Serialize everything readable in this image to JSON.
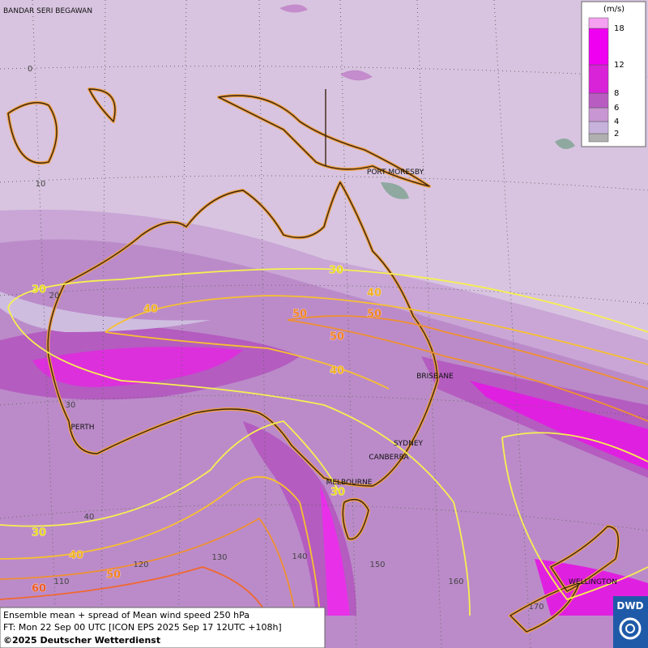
{
  "map": {
    "legend": {
      "unit": "(m/s)",
      "ticks": [
        2,
        4,
        6,
        8,
        12,
        18
      ],
      "colors": [
        "#b0b0b0",
        "#c6b2da",
        "#c896d2",
        "#b85cc2",
        "#d823d8",
        "#f000f0",
        "#f5a0f0"
      ]
    },
    "cities": [
      "BANDAR SERI BEGAWAN",
      "PORT MORESBY",
      "BRISBANE",
      "PERTH",
      "SYDNEY",
      "CANBERRA",
      "MELBOURNE",
      "WELLINGTON"
    ],
    "latitude_labels": [
      0,
      10,
      20,
      30,
      40
    ],
    "longitude_labels": [
      110,
      120,
      130,
      140,
      150,
      160,
      170
    ],
    "contour_labels": [
      30,
      40,
      50,
      50,
      30,
      40,
      50,
      40,
      30,
      30,
      40,
      50,
      60
    ]
  },
  "footer": {
    "line1": "Ensemble mean + spread of Mean wind speed 250 hPa",
    "line2": "FT: Mon 22 Sep 00 UTC [ICON EPS 2025 Sep 17 12UTC +108h]",
    "line3": "©2025 Deutscher Wetterdienst"
  },
  "logo": "DWD"
}
